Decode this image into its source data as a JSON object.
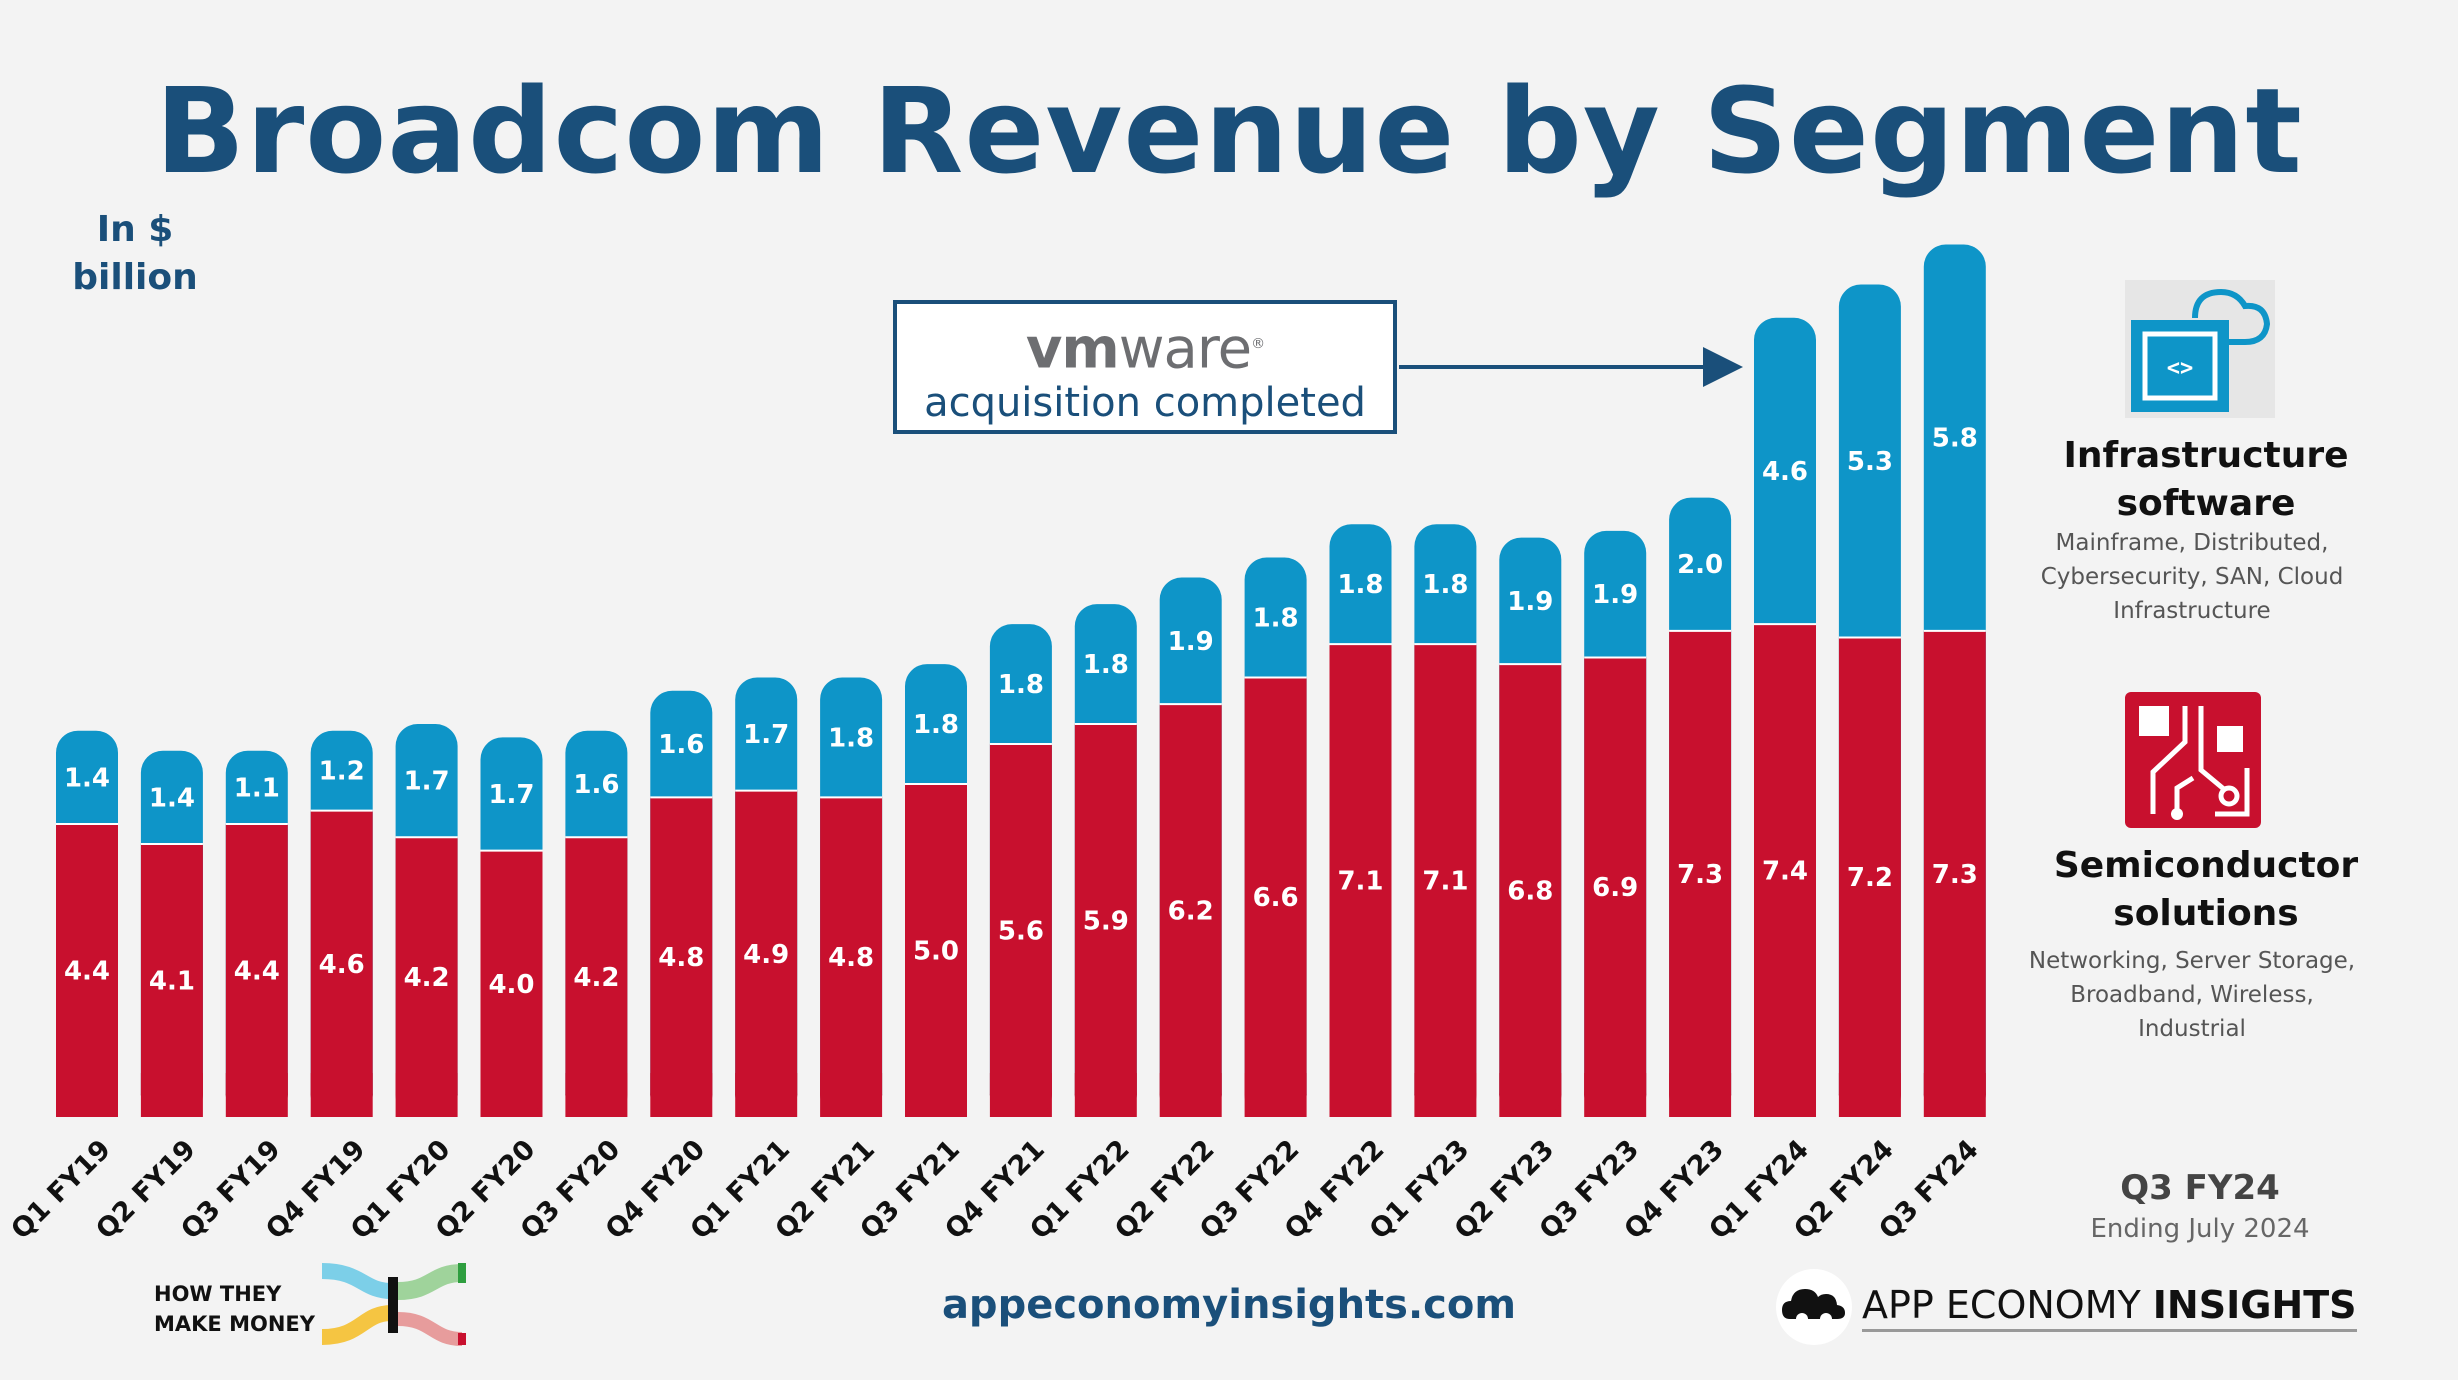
{
  "title": "Broadcom Revenue by Segment",
  "units": "In $ billion",
  "chart_data": {
    "type": "bar",
    "stacked": true,
    "categories": [
      "Q1 FY19",
      "Q2 FY19",
      "Q3 FY19",
      "Q4 FY19",
      "Q1 FY20",
      "Q2 FY20",
      "Q3 FY20",
      "Q4 FY20",
      "Q1 FY21",
      "Q2 FY21",
      "Q3 FY21",
      "Q4 FY21",
      "Q1 FY22",
      "Q2 FY22",
      "Q3 FY22",
      "Q4 FY22",
      "Q1 FY23",
      "Q2 FY23",
      "Q3 FY23",
      "Q4 FY23",
      "Q1 FY24",
      "Q2 FY24",
      "Q3 FY24"
    ],
    "series": [
      {
        "name": "Semiconductor solutions",
        "color": "#c8102e",
        "values": [
          4.4,
          4.1,
          4.4,
          4.6,
          4.2,
          4.0,
          4.2,
          4.8,
          4.9,
          4.8,
          5.0,
          5.6,
          5.9,
          6.2,
          6.6,
          7.1,
          7.1,
          6.8,
          6.9,
          7.3,
          7.4,
          7.2,
          7.3
        ],
        "labels": [
          "4.4",
          "4.1",
          "4.4",
          "4.6",
          "4.2",
          "4.0",
          "4.2",
          "4.8",
          "4.9",
          "4.8",
          "5.0",
          "5.6",
          "5.9",
          "6.2",
          "6.6",
          "7.1",
          "7.1",
          "6.8",
          "6.9",
          "7.3",
          "7.4",
          "7.2",
          "7.3"
        ]
      },
      {
        "name": "Infrastructure software",
        "color": "#0e95c8",
        "values": [
          1.4,
          1.4,
          1.1,
          1.2,
          1.7,
          1.7,
          1.6,
          1.6,
          1.7,
          1.8,
          1.8,
          1.8,
          1.8,
          1.9,
          1.8,
          1.8,
          1.8,
          1.9,
          1.9,
          2.0,
          4.6,
          5.3,
          5.8
        ],
        "labels": [
          "1.4",
          "1.4",
          "1.1",
          "1.2",
          "1.7",
          "1.7",
          "1.6",
          "1.6",
          "1.7",
          "1.8",
          "1.8",
          "1.8",
          "1.8",
          "1.9",
          "1.8",
          "1.8",
          "1.8",
          "1.9",
          "1.9",
          "2.0",
          "4.6",
          "5.3",
          "5.8"
        ]
      }
    ],
    "annotation": {
      "logo_text_bold": "vm",
      "logo_text": "ware",
      "logo_mark": "®",
      "text": "acquisition completed",
      "points_to": "Q1 FY24"
    }
  },
  "legend": {
    "software": {
      "title_line1": "Infrastructure",
      "title_line2": "software",
      "desc_line1": "Mainframe, Distributed,",
      "desc_line2": "Cybersecurity, SAN, Cloud",
      "desc_line3": "Infrastructure",
      "icon": "cloud-code-icon"
    },
    "semis": {
      "title_line1": "Semiconductor",
      "title_line2": "solutions",
      "desc_line1": "Networking, Server Storage,",
      "desc_line2": "Broadband, Wireless,",
      "desc_line3": "Industrial",
      "icon": "circuit-board-icon"
    }
  },
  "period": {
    "label": "Q3 FY24",
    "sub": "Ending July 2024"
  },
  "footer": {
    "htmm_line1": "HOW THEY",
    "htmm_line2": "MAKE MONEY",
    "site": "appeconomyinsights.com",
    "aei_regular": "APP ECONOMY ",
    "aei_bold": "INSIGHTS"
  },
  "colors": {
    "title": "#1a4f7a",
    "semis": "#c8102e",
    "software": "#0e95c8"
  }
}
